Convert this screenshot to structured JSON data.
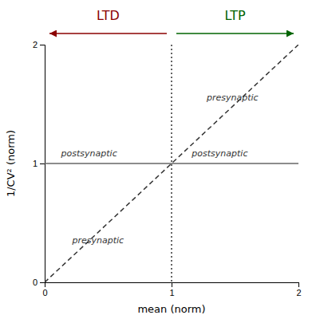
{
  "chart_data": {
    "type": "line",
    "xlabel": "mean (norm)",
    "ylabel": "1/CV² (norm)",
    "xlim": [
      0,
      2
    ],
    "ylim": [
      0,
      2
    ],
    "xticks": [
      0,
      1,
      2
    ],
    "yticks": [
      0,
      1,
      2
    ],
    "series": [
      {
        "x": [
          0,
          2
        ],
        "values": [
          0,
          2
        ],
        "color": "#333333",
        "line_style": "dashed"
      }
    ],
    "hlines": [
      {
        "y": 1,
        "color": "#666666",
        "line_style": "solid"
      }
    ],
    "vlines": [
      {
        "x": 1,
        "color": "#333333",
        "line_style": "dotted"
      }
    ],
    "annotations": [
      {
        "text": "presynaptic",
        "x": 1.48,
        "y": 1.55,
        "color": "#333333"
      },
      {
        "text": "presynaptic",
        "x": 0.42,
        "y": 0.35,
        "color": "#333333"
      },
      {
        "text": "postsynaptic",
        "x": 0.35,
        "y": 1.08,
        "color": "#333333"
      },
      {
        "text": "postsynaptic",
        "x": 1.38,
        "y": 1.08,
        "color": "#333333"
      }
    ],
    "headers": [
      {
        "text": "LTD",
        "color": "#8b0000",
        "arrow": "left"
      },
      {
        "text": "LTP",
        "color": "#006400",
        "arrow": "right"
      }
    ]
  }
}
